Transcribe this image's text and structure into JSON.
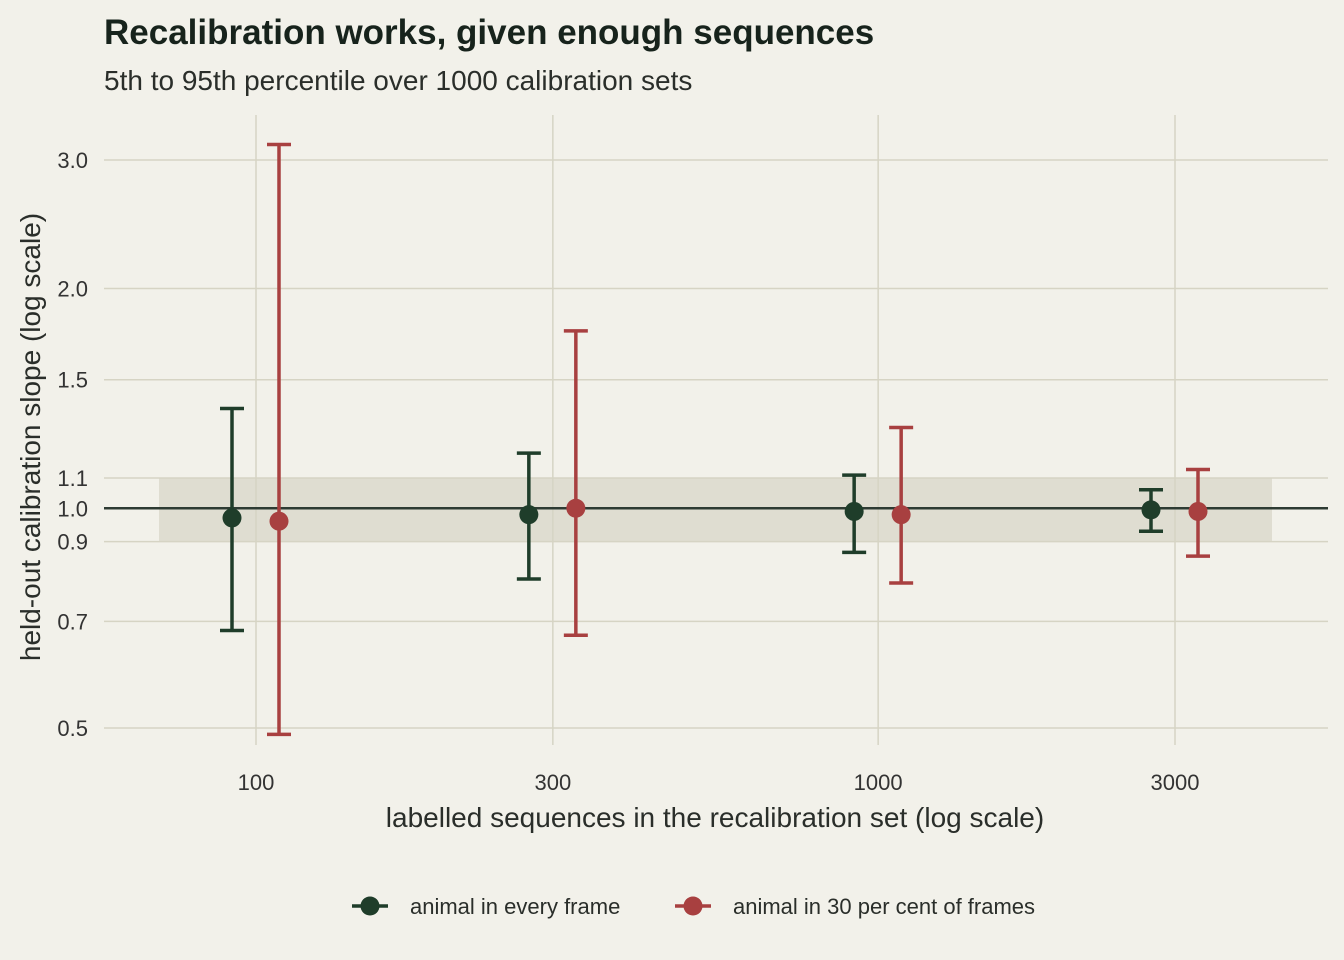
{
  "chart_data": {
    "type": "scatter",
    "title": "Recalibration works, given enough sequences",
    "subtitle": "5th to 95th percentile over 1000 calibration sets",
    "xlabel": "labelled sequences in the recalibration set (log scale)",
    "ylabel": "held-out calibration slope (log scale)",
    "x_scale": "log",
    "y_scale": "log",
    "x_ticks": [
      100,
      300,
      1000,
      3000
    ],
    "x_tick_labels": [
      "100",
      "300",
      "1000",
      "3000"
    ],
    "y_ticks": [
      0.5,
      0.7,
      0.9,
      1.0,
      1.1,
      1.5,
      2.0,
      3.0
    ],
    "y_tick_labels": [
      "0.5",
      "0.7",
      "0.9",
      "1.0",
      "1.1",
      "1.5",
      "2.0",
      "3.0"
    ],
    "reference_line": 1.0,
    "reference_band": [
      0.9,
      1.1
    ],
    "grid": true,
    "legend_position": "bottom",
    "categories": [
      100,
      300,
      1000,
      3000
    ],
    "series": [
      {
        "name": "animal in every frame",
        "color": "#1f3d2a",
        "values": [
          0.97,
          0.98,
          0.99,
          0.995
        ],
        "lower": [
          0.68,
          0.8,
          0.87,
          0.93
        ],
        "upper": [
          1.37,
          1.19,
          1.11,
          1.06
        ]
      },
      {
        "name": "animal in 30 per cent of frames",
        "color": "#a84040",
        "values": [
          0.96,
          1.0,
          0.98,
          0.99
        ],
        "lower": [
          0.49,
          0.67,
          0.79,
          0.86
        ],
        "upper": [
          3.15,
          1.75,
          1.29,
          1.13
        ]
      }
    ]
  }
}
